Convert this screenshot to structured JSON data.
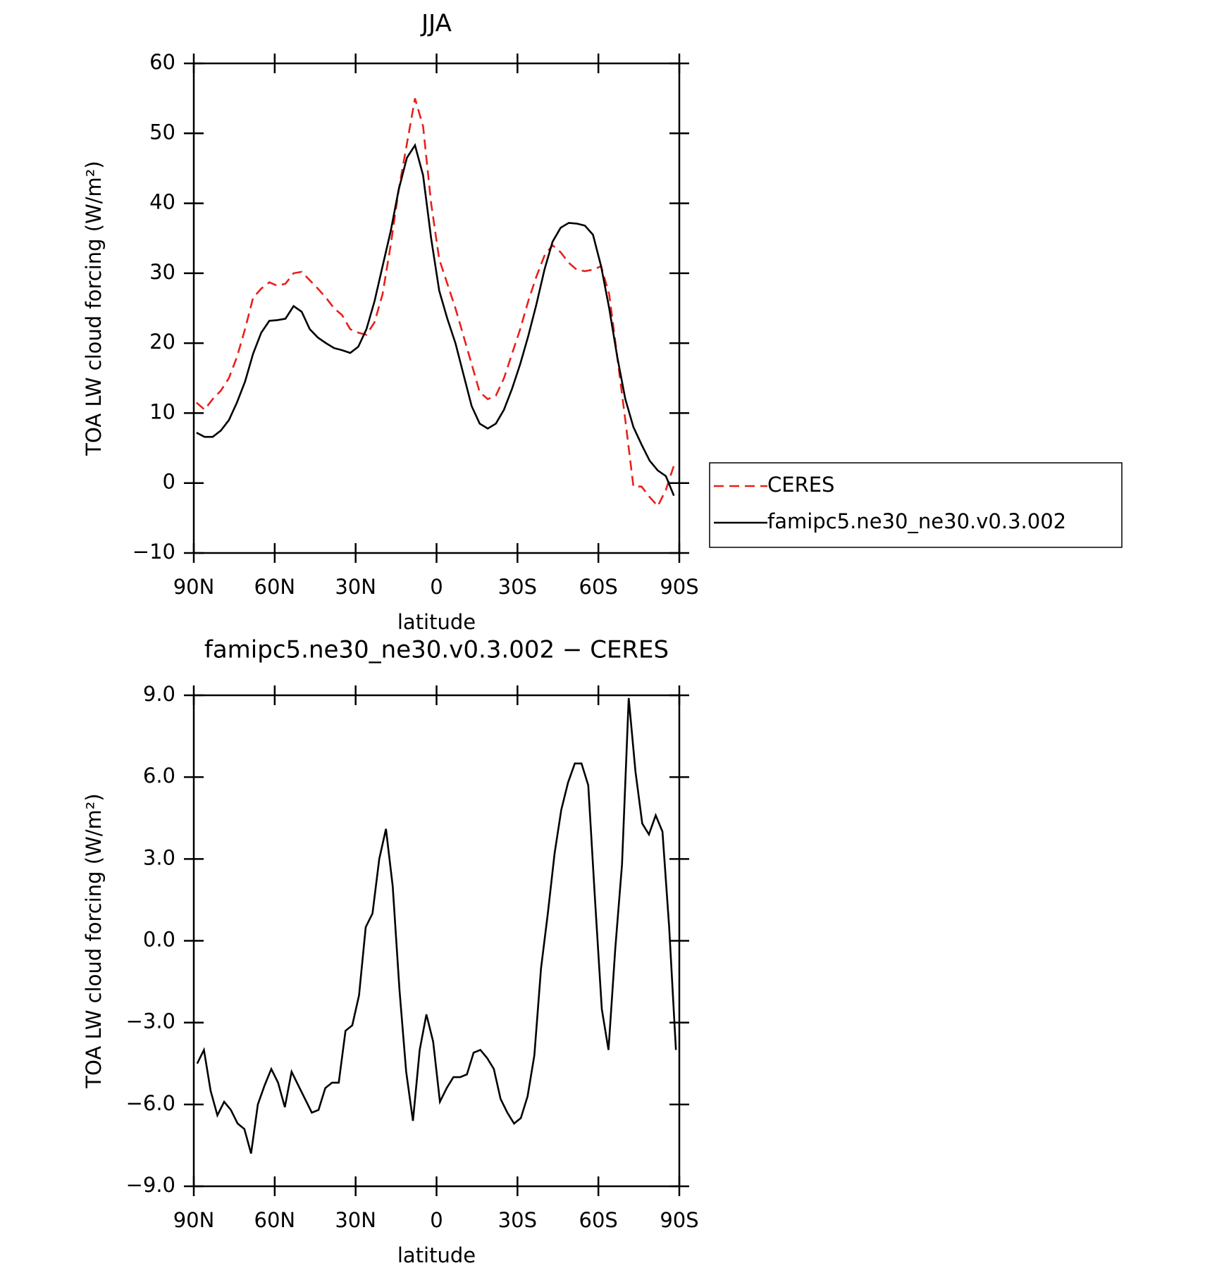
{
  "chart_data": [
    {
      "type": "line",
      "title": "JJA",
      "xlabel": "latitude",
      "ylabel": "TOA LW cloud forcing (W/m²)",
      "x": [
        89,
        86,
        83,
        80,
        77,
        74,
        71,
        68,
        65,
        62,
        59,
        56,
        53,
        50,
        47,
        44,
        41,
        38,
        35,
        32,
        29,
        26,
        23,
        20,
        17,
        14,
        11,
        8,
        5,
        2,
        -1,
        -4,
        -7,
        -10,
        -13,
        -16,
        -19,
        -22,
        -25,
        -28,
        -31,
        -34,
        -37,
        -40,
        -43,
        -46,
        -49,
        -52,
        -55,
        -58,
        -61,
        -64,
        -67,
        -70,
        -73,
        -76,
        -79,
        -82,
        -85,
        -88
      ],
      "series": [
        {
          "name": "CERES",
          "color": "#e8201c",
          "dash": true,
          "values": [
            11.5,
            10.5,
            12,
            13.2,
            15,
            18,
            22,
            26.5,
            27.8,
            28.7,
            28.2,
            28.5,
            30,
            30.2,
            29,
            27.8,
            26.5,
            25,
            24,
            22,
            21.5,
            21.2,
            23,
            27,
            34,
            42,
            48.5,
            55,
            51,
            40,
            32,
            28.5,
            25,
            21,
            17,
            13,
            12,
            12.5,
            15,
            18.5,
            22,
            26,
            29.5,
            32.5,
            34,
            33,
            31.5,
            30.5,
            30.3,
            30.5,
            31,
            27,
            18,
            9,
            -0.5,
            -0.5,
            -2,
            -3.3,
            -1,
            2.5
          ]
        },
        {
          "name": "famipc5.ne30_ne30.v0.3.002",
          "color": "#000000",
          "dash": false,
          "values": [
            7.2,
            6.6,
            6.6,
            7.5,
            9,
            11.5,
            14.5,
            18.5,
            21.5,
            23.2,
            23.3,
            23.5,
            25.3,
            24.5,
            22,
            20.8,
            20,
            19.3,
            19,
            18.6,
            19.5,
            22,
            26,
            31,
            36,
            42,
            46.5,
            48.3,
            44,
            35,
            27.5,
            23.5,
            20,
            15.5,
            11,
            8.5,
            7.8,
            8.5,
            10.5,
            13.5,
            17,
            21,
            25.5,
            30.5,
            34.5,
            36.5,
            37.2,
            37.1,
            36.8,
            35.5,
            31,
            25,
            18,
            12,
            8,
            5.5,
            3.2,
            1.8,
            1,
            -1.8
          ]
        }
      ],
      "xlim": [
        90,
        -90
      ],
      "xticks": [
        {
          "value": 90,
          "label": "90N"
        },
        {
          "value": 60,
          "label": "60N"
        },
        {
          "value": 30,
          "label": "30N"
        },
        0,
        {
          "value": -30,
          "label": "30S"
        },
        {
          "value": -60,
          "label": "60S"
        },
        {
          "value": -90,
          "label": "90S"
        }
      ],
      "ylim": [
        -10,
        60
      ],
      "yticks": [
        {
          "value": -10,
          "label": "−10"
        },
        0,
        10,
        20,
        30,
        40,
        50,
        60
      ],
      "legend": "right"
    },
    {
      "type": "line",
      "title": "famipc5.ne30_ne30.v0.3.002 − CERES",
      "xlabel": "latitude",
      "ylabel": "TOA LW cloud forcing (W/m²)",
      "x": [
        88.75,
        86.25,
        83.75,
        81.25,
        78.75,
        76.25,
        73.75,
        71.25,
        68.75,
        66.25,
        63.75,
        61.25,
        58.75,
        56.25,
        53.75,
        51.25,
        48.75,
        46.25,
        43.75,
        41.25,
        38.75,
        36.25,
        33.75,
        31.25,
        28.75,
        26.25,
        23.75,
        21.25,
        18.75,
        16.25,
        13.75,
        11.25,
        8.75,
        6.25,
        3.75,
        1.25,
        -1.25,
        -3.75,
        -6.25,
        -8.75,
        -11.25,
        -13.75,
        -16.25,
        -18.75,
        -21.25,
        -23.75,
        -26.25,
        -28.75,
        -31.25,
        -33.75,
        -36.25,
        -38.75,
        -41.25,
        -43.75,
        -46.25,
        -48.75,
        -51.25,
        -53.75,
        -56.25,
        -58.75,
        -61.25,
        -63.75,
        -66.25,
        -68.75,
        -71.25,
        -73.75,
        -76.25,
        -78.75,
        -81.25,
        -83.75,
        -86.25,
        -88.75
      ],
      "values": [
        -4.5,
        -4,
        -5.5,
        -6.4,
        -5.9,
        -6.2,
        -6.7,
        -6.9,
        -7.8,
        -6,
        -5.3,
        -4.7,
        -5.2,
        -6.1,
        -4.8,
        -5.3,
        -5.8,
        -6.3,
        -6.2,
        -5.4,
        -5.2,
        -5.2,
        -3.3,
        -3.1,
        -2,
        0.5,
        1,
        3,
        4.1,
        2,
        -1.8,
        -4.8,
        -6.6,
        -4,
        -2.7,
        -3.7,
        -5.9,
        -5.4,
        -5,
        -5,
        -4.9,
        -4.1,
        -4,
        -4.3,
        -4.7,
        -5.8,
        -6.3,
        -6.7,
        -6.5,
        -5.7,
        -4.2,
        -1,
        1,
        3.2,
        4.8,
        5.8,
        6.5,
        6.5,
        5.7,
        1.5,
        -2.5,
        -4,
        -0.3,
        2.8,
        8.9,
        6.2,
        4.3,
        3.9,
        4.6,
        4,
        0.5,
        -4
      ],
      "color": "#000000",
      "xlim": [
        90,
        -90
      ],
      "xticks": [
        {
          "value": 90,
          "label": "90N"
        },
        {
          "value": 60,
          "label": "60N"
        },
        {
          "value": 30,
          "label": "30N"
        },
        0,
        {
          "value": -30,
          "label": "30S"
        },
        {
          "value": -60,
          "label": "60S"
        },
        {
          "value": -90,
          "label": "90S"
        }
      ],
      "ylim": [
        -9,
        9
      ],
      "yticks": [
        {
          "value": -9,
          "label": "−9.0"
        },
        {
          "value": -6,
          "label": "−6.0"
        },
        {
          "value": -3,
          "label": "−3.0"
        },
        {
          "value": 0,
          "label": "0.0"
        },
        {
          "value": 3,
          "label": "3.0"
        },
        {
          "value": 6,
          "label": "6.0"
        },
        {
          "value": 9,
          "label": "9.0"
        }
      ]
    }
  ]
}
